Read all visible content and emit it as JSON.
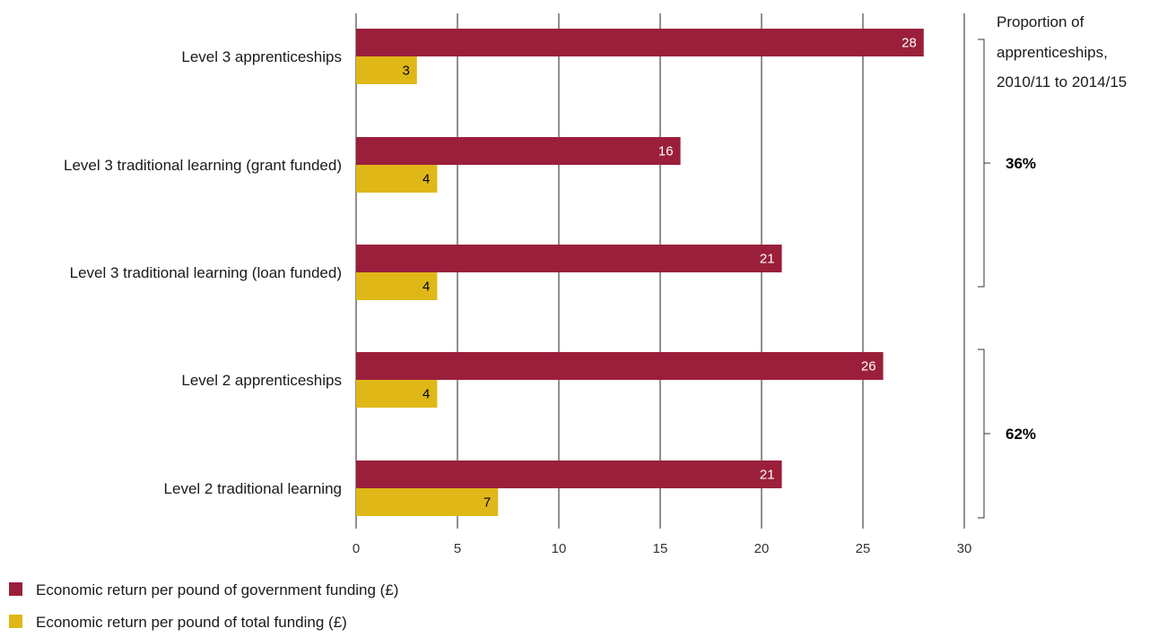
{
  "chart_data": {
    "type": "bar",
    "orientation": "horizontal",
    "categories": [
      "Level 3 apprenticeships",
      "Level 3 traditional learning (grant funded)",
      "Level 3 traditional learning (loan funded)",
      "Level 2 apprenticeships",
      "Level 2 traditional learning"
    ],
    "series": [
      {
        "name": "Economic return per pound of government funding (£)",
        "color": "#9b1f3b",
        "values": [
          28,
          16,
          21,
          26,
          21
        ]
      },
      {
        "name": "Economic return per pound of total funding (£)",
        "color": "#dfb818",
        "values": [
          3,
          4,
          4,
          4,
          7
        ]
      }
    ],
    "xlim": [
      0,
      30
    ],
    "xticks": [
      0,
      5,
      10,
      15,
      20,
      25,
      30
    ],
    "grid": "vertical",
    "legend_position": "bottom-left",
    "annotation": {
      "title_lines": [
        "Proportion of",
        "apprenticeships,",
        "2010/11 to 2014/15"
      ],
      "groups": [
        {
          "label": "36%",
          "categories": [
            0,
            1,
            2
          ]
        },
        {
          "label": "62%",
          "categories": [
            3,
            4
          ]
        }
      ]
    }
  }
}
